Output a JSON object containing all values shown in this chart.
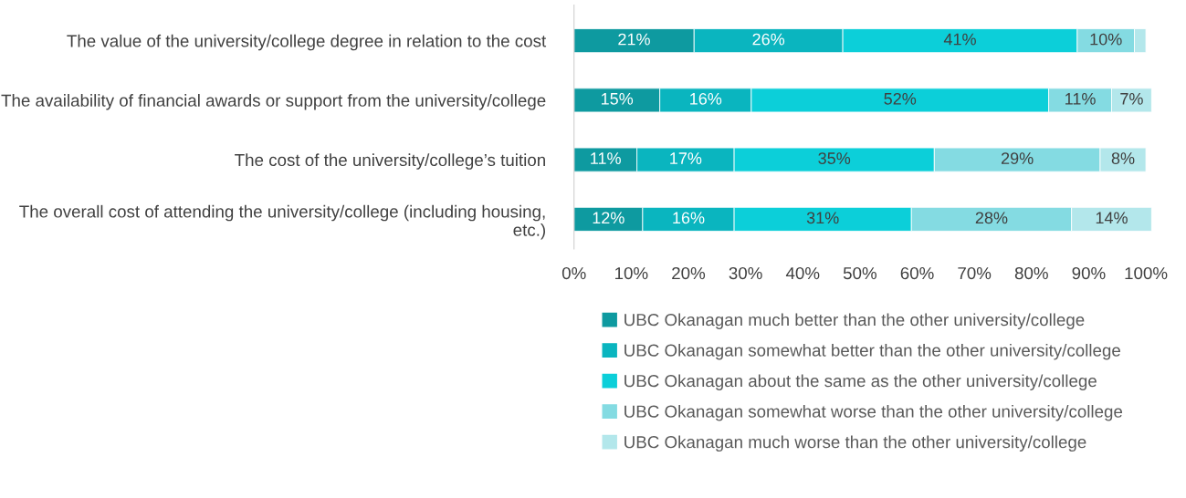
{
  "chart_data": {
    "type": "bar",
    "orientation": "horizontal",
    "stacked": true,
    "categories": [
      "The value of the university/college degree in relation to the cost",
      "The availability of financial awards or support from the university/college",
      "The cost of the university/college’s tuition",
      "The overall cost of attending the university/college (including housing, etc.)"
    ],
    "series": [
      {
        "name": "UBC Okanagan much better than the other university/college",
        "color": "#0e9aa0",
        "values": [
          21,
          15,
          11,
          12
        ],
        "value_labels": [
          "21%",
          "15%",
          "11%",
          "12%"
        ]
      },
      {
        "name": "UBC Okanagan somewhat better than the other university/college",
        "color": "#0ab5bf",
        "values": [
          26,
          16,
          17,
          16
        ],
        "value_labels": [
          "26%",
          "16%",
          "17%",
          "16%"
        ]
      },
      {
        "name": "UBC Okanagan about the same as the other university/college",
        "color": "#0ccfd9",
        "values": [
          41,
          52,
          35,
          31
        ],
        "value_labels": [
          "41%",
          "52%",
          "35%",
          "31%"
        ]
      },
      {
        "name": "UBC Okanagan somewhat worse than the other university/college",
        "color": "#84dbe2",
        "values": [
          10,
          11,
          29,
          28
        ],
        "value_labels": [
          "10%",
          "11%",
          "29%",
          "28%"
        ]
      },
      {
        "name": "UBC Okanagan much worse than the other university/college",
        "color": "#b3e7eb",
        "values": [
          2,
          7,
          8,
          14
        ],
        "value_labels": [
          null,
          "7%",
          "8%",
          "14%"
        ]
      }
    ],
    "xlim": [
      0,
      101
    ],
    "xticks": [
      {
        "value": 0,
        "label": "0%"
      },
      {
        "value": 10,
        "label": "10%"
      },
      {
        "value": 20,
        "label": "20%"
      },
      {
        "value": 30,
        "label": "30%"
      },
      {
        "value": 40,
        "label": "40%"
      },
      {
        "value": 50,
        "label": "50%"
      },
      {
        "value": 60,
        "label": "60%"
      },
      {
        "value": 70,
        "label": "70%"
      },
      {
        "value": 80,
        "label": "80%"
      },
      {
        "value": 90,
        "label": "90%"
      },
      {
        "value": 100,
        "label": "100%"
      }
    ],
    "grid": false,
    "legend": "bottom"
  }
}
